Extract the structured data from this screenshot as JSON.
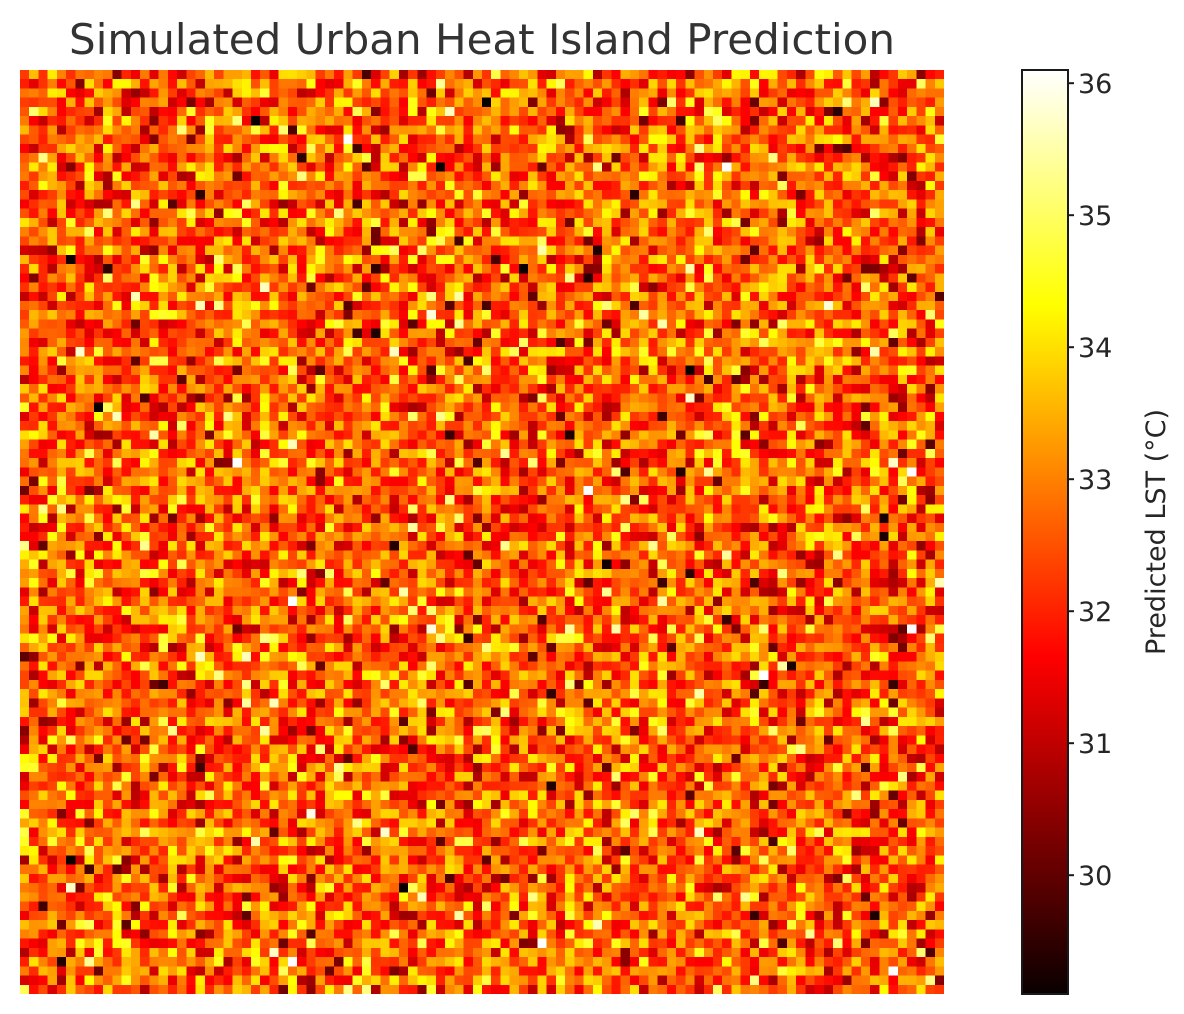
{
  "chart_data": {
    "type": "heatmap",
    "title": "Simulated Urban Heat Island Prediction",
    "colormap": "hot",
    "grid": {
      "rows": 100,
      "cols": 100
    },
    "value_range": [
      29.1,
      36.1
    ],
    "distribution": {
      "mean": 32.6,
      "std": 1.1
    },
    "colorbar": {
      "label": "Predicted LST (°C)",
      "ticks": [
        30,
        31,
        32,
        33,
        34,
        35,
        36
      ],
      "tick_labels": [
        "30",
        "31",
        "32",
        "33",
        "34",
        "35",
        "36"
      ],
      "range": [
        29.1,
        36.1
      ]
    },
    "xlabel": "",
    "ylabel": "",
    "axes_visible": false
  }
}
